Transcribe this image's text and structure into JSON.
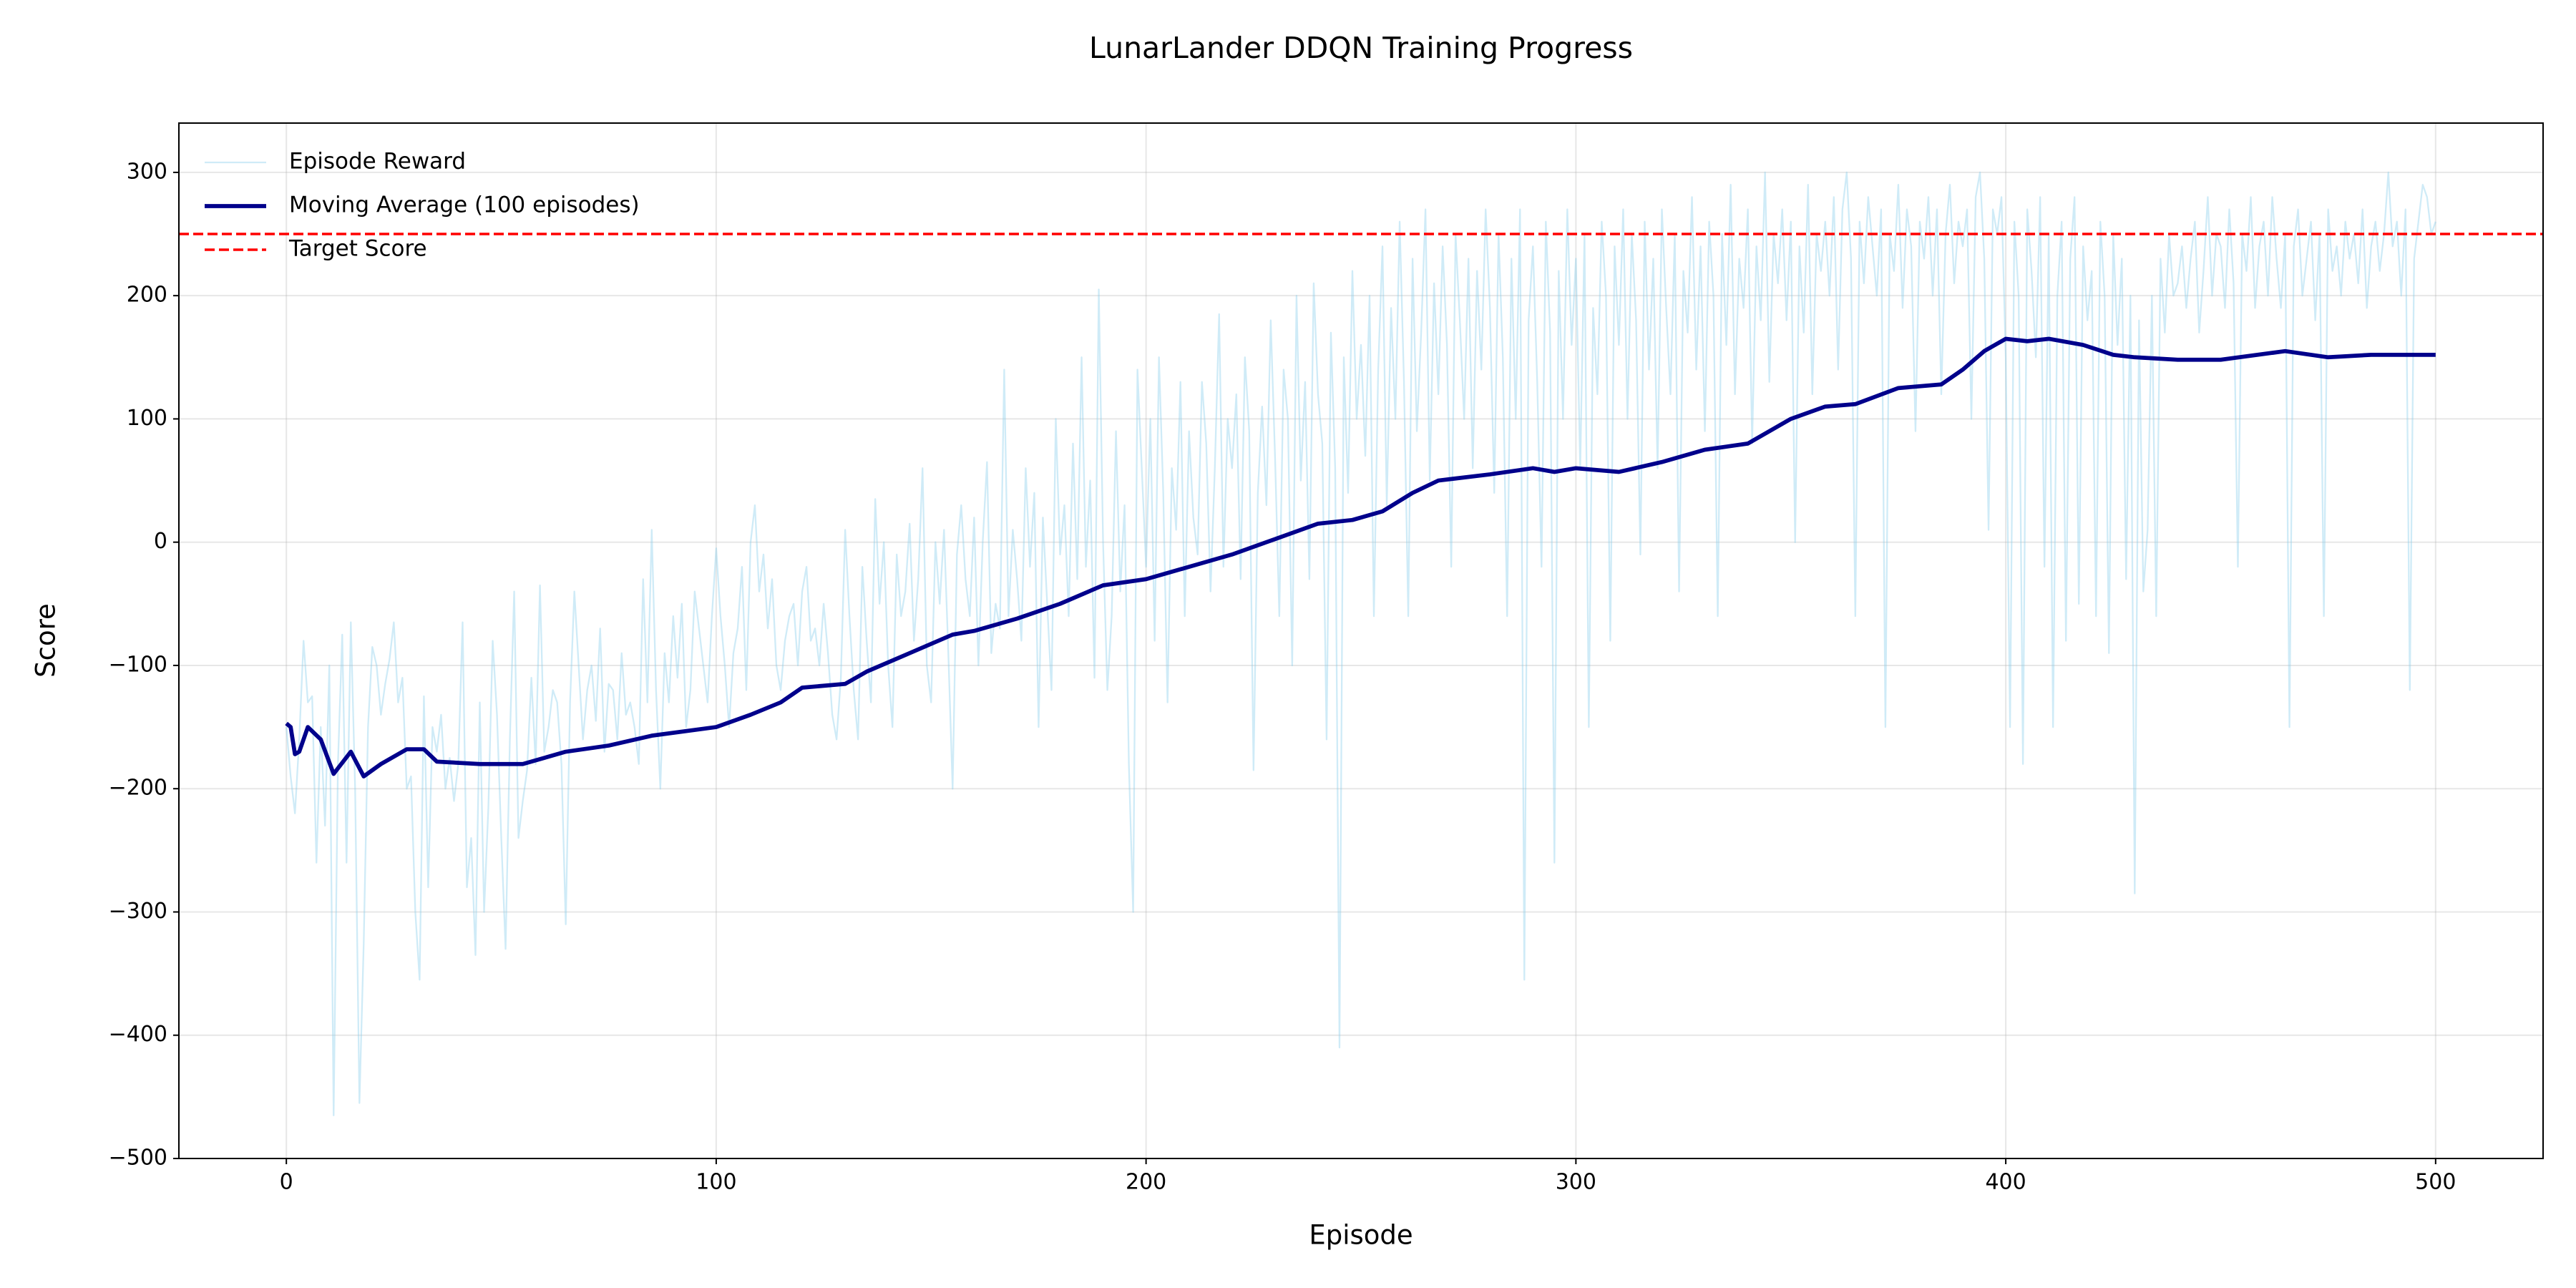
{
  "chart_data": {
    "type": "line",
    "title": "LunarLander DDQN Training Progress",
    "x_label": "Episode",
    "y_label": "Score",
    "xlim": [
      -25,
      525
    ],
    "xticks": [
      0,
      100,
      200,
      300,
      400,
      500
    ],
    "ylim": [
      -500,
      340
    ],
    "yticks": [
      {
        "value": -500,
        "label": "−500"
      },
      {
        "value": -400,
        "label": "−400"
      },
      {
        "value": -300,
        "label": "−300"
      },
      {
        "value": -200,
        "label": "−200"
      },
      {
        "value": -100,
        "label": "−100"
      },
      0,
      100,
      200,
      300
    ],
    "grid": true,
    "legend": "upper left",
    "series": [
      {
        "name": "Episode Reward",
        "color": "#87ceeb",
        "opacity": 0.4,
        "width": 1,
        "x": [
          0,
          1,
          2,
          3,
          4,
          5,
          6,
          7,
          8,
          9,
          10,
          11,
          12,
          13,
          14,
          15,
          16,
          17,
          18,
          19,
          20,
          21,
          22,
          23,
          24,
          25,
          26,
          27,
          28,
          29,
          30,
          31,
          32,
          33,
          34,
          35,
          36,
          37,
          38,
          39,
          40,
          41,
          42,
          43,
          44,
          45,
          46,
          47,
          48,
          49,
          50,
          51,
          52,
          53,
          54,
          55,
          56,
          57,
          58,
          59,
          60,
          61,
          62,
          63,
          64,
          65,
          66,
          67,
          68,
          69,
          70,
          71,
          72,
          73,
          74,
          75,
          76,
          77,
          78,
          79,
          80,
          81,
          82,
          83,
          84,
          85,
          86,
          87,
          88,
          89,
          90,
          91,
          92,
          93,
          94,
          95,
          96,
          97,
          98,
          99,
          100,
          101,
          102,
          103,
          104,
          105,
          106,
          107,
          108,
          109,
          110,
          111,
          112,
          113,
          114,
          115,
          116,
          117,
          118,
          119,
          120,
          121,
          122,
          123,
          124,
          125,
          126,
          127,
          128,
          129,
          130,
          131,
          132,
          133,
          134,
          135,
          136,
          137,
          138,
          139,
          140,
          141,
          142,
          143,
          144,
          145,
          146,
          147,
          148,
          149,
          150,
          151,
          152,
          153,
          154,
          155,
          156,
          157,
          158,
          159,
          160,
          161,
          162,
          163,
          164,
          165,
          166,
          167,
          168,
          169,
          170,
          171,
          172,
          173,
          174,
          175,
          176,
          177,
          178,
          179,
          180,
          181,
          182,
          183,
          184,
          185,
          186,
          187,
          188,
          189,
          190,
          191,
          192,
          193,
          194,
          195,
          196,
          197,
          198,
          199,
          200,
          201,
          202,
          203,
          204,
          205,
          206,
          207,
          208,
          209,
          210,
          211,
          212,
          213,
          214,
          215,
          216,
          217,
          218,
          219,
          220,
          221,
          222,
          223,
          224,
          225,
          226,
          227,
          228,
          229,
          230,
          231,
          232,
          233,
          234,
          235,
          236,
          237,
          238,
          239,
          240,
          241,
          242,
          243,
          244,
          245,
          246,
          247,
          248,
          249,
          250,
          251,
          252,
          253,
          254,
          255,
          256,
          257,
          258,
          259,
          260,
          261,
          262,
          263,
          264,
          265,
          266,
          267,
          268,
          269,
          270,
          271,
          272,
          273,
          274,
          275,
          276,
          277,
          278,
          279,
          280,
          281,
          282,
          283,
          284,
          285,
          286,
          287,
          288,
          289,
          290,
          291,
          292,
          293,
          294,
          295,
          296,
          297,
          298,
          299,
          300,
          301,
          302,
          303,
          304,
          305,
          306,
          307,
          308,
          309,
          310,
          311,
          312,
          313,
          314,
          315,
          316,
          317,
          318,
          319,
          320,
          321,
          322,
          323,
          324,
          325,
          326,
          327,
          328,
          329,
          330,
          331,
          332,
          333,
          334,
          335,
          336,
          337,
          338,
          339,
          340,
          341,
          342,
          343,
          344,
          345,
          346,
          347,
          348,
          349,
          350,
          351,
          352,
          353,
          354,
          355,
          356,
          357,
          358,
          359,
          360,
          361,
          362,
          363,
          364,
          365,
          366,
          367,
          368,
          369,
          370,
          371,
          372,
          373,
          374,
          375,
          376,
          377,
          378,
          379,
          380,
          381,
          382,
          383,
          384,
          385,
          386,
          387,
          388,
          389,
          390,
          391,
          392,
          393,
          394,
          395,
          396,
          397,
          398,
          399,
          400,
          401,
          402,
          403,
          404,
          405,
          406,
          407,
          408,
          409,
          410,
          411,
          412,
          413,
          414,
          415,
          416,
          417,
          418,
          419,
          420,
          421,
          422,
          423,
          424,
          425,
          426,
          427,
          428,
          429,
          430,
          431,
          432,
          433,
          434,
          435,
          436,
          437,
          438,
          439,
          440,
          441,
          442,
          443,
          444,
          445,
          446,
          447,
          448,
          449,
          450,
          451,
          452,
          453,
          454,
          455,
          456,
          457,
          458,
          459,
          460,
          461,
          462,
          463,
          464,
          465,
          466,
          467,
          468,
          469,
          470,
          471,
          472,
          473,
          474,
          475,
          476,
          477,
          478,
          479,
          480,
          481,
          482,
          483,
          484,
          485,
          486,
          487,
          488,
          489,
          490,
          491,
          492,
          493,
          494,
          495,
          496,
          497,
          498,
          499,
          500
        ],
        "values": [
          -150,
          -190,
          -220,
          -160,
          -80,
          -130,
          -125,
          -260,
          -150,
          -230,
          -100,
          -465,
          -180,
          -75,
          -260,
          -65,
          -200,
          -455,
          -325,
          -150,
          -85,
          -100,
          -140,
          -115,
          -95,
          -65,
          -130,
          -110,
          -200,
          -190,
          -300,
          -355,
          -125,
          -280,
          -150,
          -170,
          -140,
          -200,
          -175,
          -210,
          -180,
          -65,
          -280,
          -240,
          -335,
          -130,
          -300,
          -215,
          -80,
          -140,
          -240,
          -330,
          -160,
          -40,
          -240,
          -210,
          -185,
          -110,
          -180,
          -35,
          -170,
          -150,
          -120,
          -130,
          -180,
          -310,
          -130,
          -40,
          -100,
          -160,
          -120,
          -100,
          -145,
          -70,
          -170,
          -115,
          -120,
          -160,
          -90,
          -140,
          -130,
          -150,
          -180,
          -30,
          -130,
          10,
          -120,
          -200,
          -90,
          -130,
          -60,
          -110,
          -50,
          -150,
          -120,
          -40,
          -70,
          -100,
          -130,
          -60,
          -5,
          -60,
          -100,
          -150,
          -90,
          -70,
          -20,
          -120,
          0,
          30,
          -40,
          -10,
          -70,
          -30,
          -100,
          -120,
          -80,
          -60,
          -50,
          -100,
          -40,
          -20,
          -80,
          -70,
          -100,
          -50,
          -90,
          -140,
          -160,
          -110,
          10,
          -60,
          -120,
          -160,
          -20,
          -80,
          -130,
          35,
          -50,
          0,
          -100,
          -150,
          -10,
          -60,
          -40,
          15,
          -80,
          -30,
          60,
          -100,
          -130,
          0,
          -50,
          10,
          -90,
          -200,
          -10,
          30,
          -30,
          -60,
          20,
          -100,
          0,
          65,
          -90,
          -50,
          -70,
          140,
          -60,
          10,
          -30,
          -80,
          60,
          -20,
          40,
          -150,
          20,
          -50,
          -120,
          100,
          -10,
          30,
          -60,
          80,
          -30,
          150,
          -20,
          50,
          -110,
          205,
          0,
          -120,
          -60,
          90,
          -40,
          30,
          -180,
          -300,
          140,
          60,
          -20,
          100,
          -80,
          150,
          40,
          -130,
          60,
          10,
          130,
          -60,
          90,
          20,
          -10,
          130,
          80,
          -40,
          60,
          185,
          -20,
          100,
          60,
          120,
          -30,
          150,
          90,
          -185,
          40,
          110,
          30,
          180,
          70,
          -60,
          140,
          100,
          -100,
          200,
          50,
          130,
          -30,
          210,
          120,
          80,
          -160,
          170,
          60,
          -410,
          150,
          40,
          220,
          100,
          160,
          70,
          200,
          -60,
          140,
          240,
          30,
          190,
          100,
          260,
          130,
          -60,
          230,
          90,
          170,
          270,
          50,
          210,
          120,
          240,
          160,
          -20,
          250,
          180,
          100,
          230,
          60,
          220,
          140,
          270,
          190,
          40,
          250,
          150,
          -60,
          230,
          100,
          270,
          -355,
          180,
          240,
          130,
          -20,
          260,
          170,
          -260,
          220,
          100,
          270,
          160,
          230,
          60,
          250,
          -150,
          190,
          120,
          260,
          200,
          -80,
          240,
          160,
          270,
          100,
          250,
          180,
          -10,
          260,
          140,
          230,
          60,
          270,
          190,
          120,
          250,
          -40,
          220,
          170,
          280,
          140,
          240,
          90,
          260,
          200,
          -60,
          250,
          160,
          290,
          120,
          230,
          190,
          270,
          80,
          240,
          180,
          300,
          130,
          250,
          210,
          270,
          180,
          260,
          0,
          240,
          170,
          290,
          120,
          250,
          220,
          260,
          200,
          280,
          140,
          270,
          300,
          230,
          -60,
          260,
          210,
          280,
          240,
          200,
          270,
          -150,
          250,
          220,
          290,
          190,
          270,
          240,
          90,
          260,
          230,
          280,
          200,
          270,
          120,
          250,
          290,
          210,
          260,
          240,
          270,
          100,
          280,
          300,
          230,
          10,
          270,
          250,
          280,
          150,
          -150,
          260,
          200,
          -180,
          270,
          220,
          150,
          280,
          -20,
          250,
          -150,
          200,
          260,
          -80,
          230,
          280,
          -50,
          240,
          180,
          220,
          -60,
          260,
          200,
          -90,
          250,
          160,
          230,
          -30,
          200,
          -285,
          180,
          -40,
          10,
          200,
          -60,
          230,
          170,
          250,
          200,
          210,
          240,
          190,
          230,
          260,
          170,
          220,
          280,
          200,
          250,
          240,
          190,
          270,
          210,
          -20,
          250,
          220,
          280,
          190,
          240,
          260,
          200,
          280,
          230,
          190,
          250,
          -150,
          240,
          270,
          200,
          230,
          260,
          180,
          250,
          -60,
          270,
          220,
          240,
          200,
          260,
          230,
          250,
          210,
          270,
          190,
          240,
          260,
          220,
          250,
          300,
          240,
          260,
          200,
          270,
          -120,
          230,
          260,
          290,
          280,
          250,
          260
        ]
      },
      {
        "name": "Moving Average (100 episodes)",
        "color": "#00008b",
        "opacity": 1,
        "width": 2.5,
        "x": [
          0,
          1,
          2,
          3,
          5,
          8,
          11,
          15,
          18,
          22,
          28,
          32,
          35,
          45,
          55,
          65,
          75,
          85,
          100,
          108,
          115,
          120,
          130,
          135,
          145,
          155,
          160,
          170,
          180,
          190,
          200,
          210,
          220,
          228,
          240,
          248,
          255,
          262,
          268,
          280,
          290,
          295,
          300,
          310,
          320,
          330,
          340,
          350,
          358,
          365,
          375,
          385,
          390,
          395,
          400,
          405,
          410,
          418,
          425,
          430,
          440,
          450,
          465,
          475,
          485,
          495,
          500
        ],
        "values": [
          -147,
          -150,
          -172,
          -170,
          -150,
          -160,
          -188,
          -170,
          -190,
          -180,
          -168,
          -168,
          -178,
          -180,
          -180,
          -170,
          -165,
          -157,
          -150,
          -140,
          -130,
          -118,
          -115,
          -105,
          -90,
          -75,
          -72,
          -62,
          -50,
          -35,
          -30,
          -20,
          -10,
          0,
          15,
          18,
          25,
          40,
          50,
          55,
          60,
          57,
          60,
          57,
          65,
          75,
          80,
          100,
          110,
          112,
          125,
          128,
          140,
          155,
          165,
          163,
          165,
          160,
          152,
          150,
          148,
          148,
          155,
          150,
          152,
          152,
          152
        ]
      }
    ],
    "target": {
      "name": "Target Score",
      "value": 250,
      "color": "#ff0000"
    }
  }
}
